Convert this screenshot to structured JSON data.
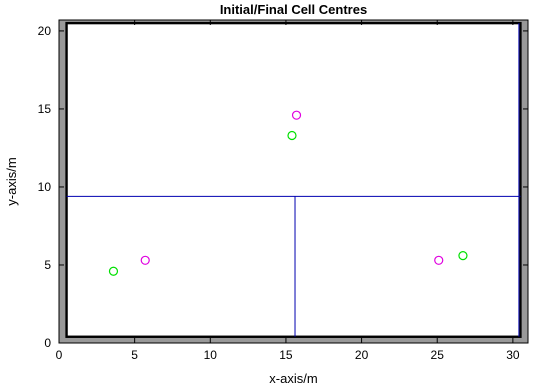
{
  "chart_data": {
    "type": "scatter",
    "title": "Initial/Final Cell Centres",
    "xlabel": "x-axis/m",
    "ylabel": "y-axis/m",
    "xlim": [
      0,
      31
    ],
    "ylim": [
      0,
      20.7
    ],
    "xticks": [
      0,
      5,
      10,
      15,
      20,
      25,
      30
    ],
    "yticks": [
      0,
      5,
      10,
      15,
      20
    ],
    "grid": false,
    "legend": "none",
    "walls": {
      "x_min": 0.5,
      "x_max": 30.5,
      "y_min": 0.4,
      "y_max": 20.5,
      "fill_color": "#999999"
    },
    "partition_lines": [
      {
        "x": [
          0.5,
          30.5
        ],
        "y": [
          9.4,
          9.4
        ]
      },
      {
        "x": [
          15.6,
          15.6
        ],
        "y": [
          0.4,
          9.4
        ]
      },
      {
        "x": [
          30.4,
          30.4
        ],
        "y": [
          0.4,
          20.5
        ]
      }
    ],
    "series": [
      {
        "color": "#00e000",
        "x": [
          3.6,
          15.4,
          26.7
        ],
        "y": [
          4.6,
          13.3,
          5.6
        ]
      },
      {
        "color": "#e000e0",
        "x": [
          5.7,
          15.7,
          25.1
        ],
        "y": [
          5.3,
          14.6,
          5.3
        ]
      }
    ],
    "line_color": "#0000b0"
  }
}
